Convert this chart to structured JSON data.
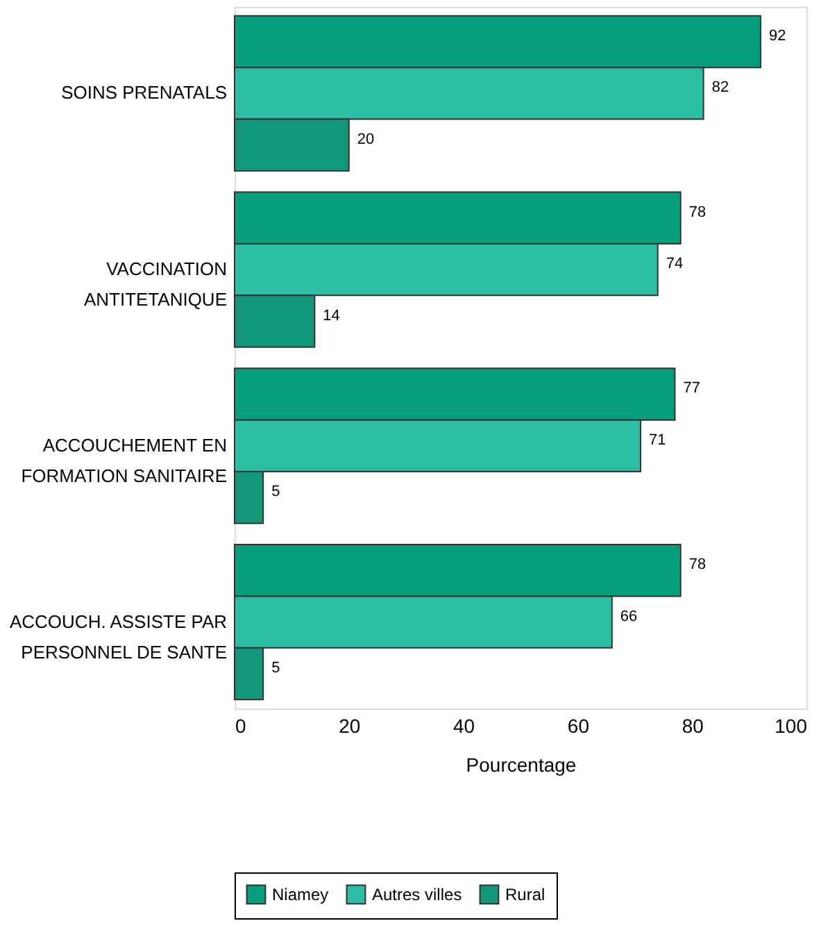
{
  "chart_data": {
    "type": "bar",
    "orientation": "horizontal",
    "categories": [
      "SOINS PRENATALS",
      "VACCINATION\nANTITETANIQUE",
      "ACCOUCHEMENT EN\nFORMATION SANITAIRE",
      "ACCOUCH. ASSISTE PAR\nPERSONNEL DE SANTE"
    ],
    "series": [
      {
        "name": "Niamey",
        "color": "#079e7e",
        "values": [
          92,
          78,
          77,
          78
        ]
      },
      {
        "name": "Autres villes",
        "color": "#2cbea4",
        "values": [
          82,
          74,
          71,
          66
        ]
      },
      {
        "name": "Rural",
        "color": "#13977b",
        "values": [
          20,
          14,
          5,
          5
        ]
      }
    ],
    "xlabel": "Pourcentage",
    "xlim": [
      0,
      100
    ],
    "xticks": [
      0,
      20,
      40,
      60,
      80,
      100
    ],
    "data_labels": true,
    "grid": false,
    "legend": "bottom"
  }
}
